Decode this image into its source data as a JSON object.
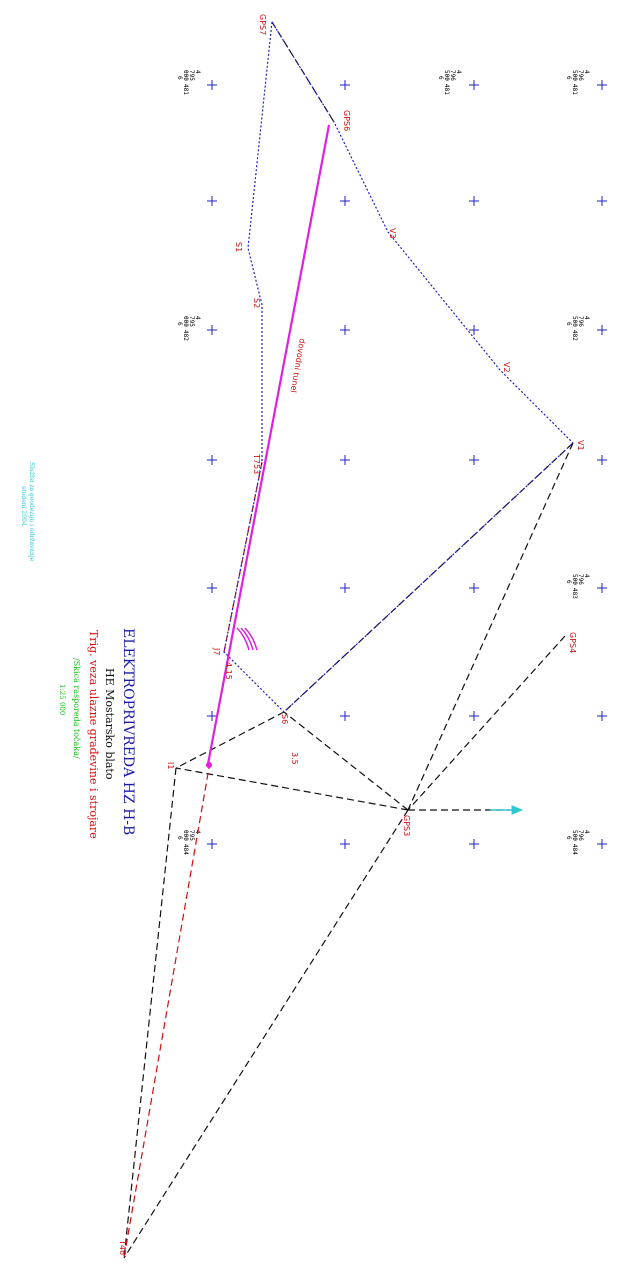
{
  "title_block": {
    "company": "ELEKTROPRIVREDA HZ H-B",
    "project": "HE Mostarsko blato",
    "subject": "Trig. veza ulazne građevine i strojare",
    "subtitle": "/Skica rasporeda točaka/",
    "scale": "1:25 000",
    "institution_line1": "Služba za geodeziju i održavanje",
    "institution_line2": "studeni 2004."
  },
  "colors": {
    "company": "#1a1aa8",
    "project": "#111111",
    "subject": "#e01010",
    "subtitle": "#16c016",
    "scale": "#16c016",
    "institution": "#30c8d0",
    "point_label": "#d01010",
    "tunnel": "#e020e0",
    "traverse": "#2020c0",
    "sight_black": "#111111",
    "sight_red": "#d01010",
    "grid_cross": "#2020c0",
    "north_arrow": "#30c8d0"
  },
  "grid_coord_labels": {
    "c1": [
      "4",
      "795",
      "000",
      "481",
      "6"
    ],
    "c2": [
      "4",
      "796",
      "500",
      "481",
      "6"
    ],
    "c3": [
      "4",
      "796",
      "500",
      "481",
      "6"
    ],
    "c4": [
      "4",
      "795",
      "000",
      "482",
      "6"
    ],
    "c5": [
      "4",
      "796",
      "500",
      "482",
      "6"
    ],
    "c6": [
      "4",
      "796",
      "500",
      "483",
      "6"
    ],
    "c7": [
      "4",
      "795",
      "000",
      "484",
      "6"
    ],
    "c8": [
      "4",
      "796",
      "500",
      "484",
      "6"
    ]
  },
  "points": {
    "GPS7": "GPS7",
    "GPS6": "GPS6",
    "V3": "V3",
    "V2": "V2",
    "V1": "V1",
    "S1": "S1",
    "S2": "S2",
    "T753": "T753",
    "J7": "J7",
    "S6": "S6",
    "I1": "I1",
    "GPS4": "GPS4",
    "GPS3": "GPS3",
    "T46": "T46"
  },
  "annotations": {
    "tunnel_label": "dovodni tunel",
    "short_label_1": "4.15",
    "short_label_2": "3.5"
  }
}
